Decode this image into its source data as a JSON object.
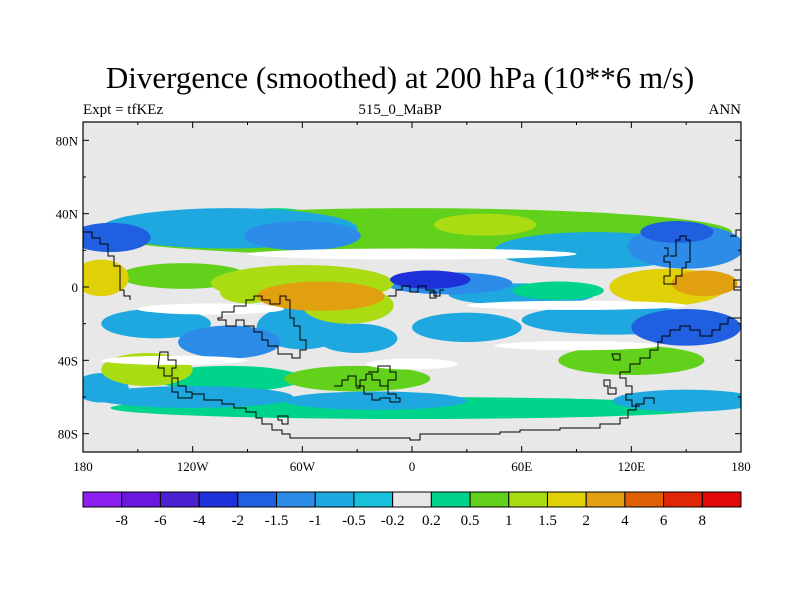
{
  "title": "Divergence (smoothed) at 200 hPa (10**6 m/s)",
  "left_label": "Expt = tfKEz",
  "center_label": "515_0_MaBP",
  "right_label": "ANN",
  "axes": {
    "lon_ticks": [
      {
        "value": -180,
        "label": "180"
      },
      {
        "value": -120,
        "label": "120W"
      },
      {
        "value": -60,
        "label": "60W"
      },
      {
        "value": 0,
        "label": "0"
      },
      {
        "value": 60,
        "label": "60E"
      },
      {
        "value": 120,
        "label": "120E"
      },
      {
        "value": 180,
        "label": "180"
      }
    ],
    "lat_ticks": [
      {
        "value": 80,
        "label": "80N"
      },
      {
        "value": 40,
        "label": "40N"
      },
      {
        "value": 0,
        "label": "0"
      },
      {
        "value": -40,
        "label": "40S"
      },
      {
        "value": -80,
        "label": "80S"
      }
    ],
    "lon_range": [
      -180,
      180
    ],
    "lat_range": [
      -90,
      90
    ]
  },
  "colorbar": {
    "colors": [
      "#8C20F0",
      "#6A18E0",
      "#4A20D0",
      "#1E30D8",
      "#1F5FE0",
      "#2C8CE8",
      "#1FA8E0",
      "#18C0DC",
      "#E8E8E8",
      "#00D48A",
      "#62D11C",
      "#AADC14",
      "#E0D008",
      "#E0A010",
      "#E06008",
      "#E02808",
      "#E00808"
    ],
    "labels": [
      "-8",
      "-6",
      "-4",
      "-2",
      "-1.5",
      "-1",
      "-0.5",
      "-0.2",
      "0.2",
      "0.5",
      "1",
      "1.5",
      "2",
      "4",
      "6",
      "8"
    ]
  },
  "field": {
    "background_color": "#E8E8E8",
    "blobs": [
      {
        "lon": 0,
        "lat": 30,
        "rx": 175,
        "ry": 13,
        "level": 0.6
      },
      {
        "lon": -100,
        "lat": 32,
        "rx": 70,
        "ry": 11,
        "level": -0.8
      },
      {
        "lon": -60,
        "lat": 28,
        "rx": 32,
        "ry": 8,
        "level": -1.4
      },
      {
        "lon": -75,
        "lat": 37,
        "rx": 25,
        "ry": 6,
        "level": 0.5
      },
      {
        "lon": 40,
        "lat": 34,
        "rx": 28,
        "ry": 6,
        "level": 1.2
      },
      {
        "lon": 100,
        "lat": 20,
        "rx": 55,
        "ry": 10,
        "level": -0.9
      },
      {
        "lon": 150,
        "lat": 22,
        "rx": 32,
        "ry": 12,
        "level": -1.3
      },
      {
        "lon": 145,
        "lat": 30,
        "rx": 20,
        "ry": 6,
        "level": -1.8
      },
      {
        "lon": -165,
        "lat": 27,
        "rx": 22,
        "ry": 8,
        "level": -1.6
      },
      {
        "lon": 140,
        "lat": 0,
        "rx": 32,
        "ry": 10,
        "level": 1.7
      },
      {
        "lon": 160,
        "lat": 2,
        "rx": 18,
        "ry": 7,
        "level": 2.5
      },
      {
        "lon": -170,
        "lat": 5,
        "rx": 15,
        "ry": 10,
        "level": 1.6
      },
      {
        "lon": -125,
        "lat": 6,
        "rx": 35,
        "ry": 7,
        "level": 0.7
      },
      {
        "lon": -60,
        "lat": 2,
        "rx": 50,
        "ry": 10,
        "level": 1.4
      },
      {
        "lon": -50,
        "lat": -5,
        "rx": 35,
        "ry": 8,
        "level": 2.2
      },
      {
        "lon": -90,
        "lat": -3,
        "rx": 15,
        "ry": 6,
        "level": 1.3
      },
      {
        "lon": 20,
        "lat": 2,
        "rx": 35,
        "ry": 6,
        "level": -1.0
      },
      {
        "lon": 10,
        "lat": 4,
        "rx": 22,
        "ry": 5,
        "level": -2.2
      },
      {
        "lon": 60,
        "lat": -4,
        "rx": 40,
        "ry": 6,
        "level": -0.5
      },
      {
        "lon": 80,
        "lat": -2,
        "rx": 25,
        "ry": 5,
        "level": 0.5
      },
      {
        "lon": -35,
        "lat": -10,
        "rx": 25,
        "ry": 10,
        "level": 1.1
      },
      {
        "lon": -140,
        "lat": -20,
        "rx": 30,
        "ry": 8,
        "level": -0.9
      },
      {
        "lon": -60,
        "lat": -22,
        "rx": 25,
        "ry": 12,
        "level": -0.6
      },
      {
        "lon": -100,
        "lat": -30,
        "rx": 28,
        "ry": 9,
        "level": -1.1
      },
      {
        "lon": -30,
        "lat": -28,
        "rx": 22,
        "ry": 8,
        "level": -0.8
      },
      {
        "lon": 30,
        "lat": -22,
        "rx": 30,
        "ry": 8,
        "level": -0.6
      },
      {
        "lon": 110,
        "lat": -18,
        "rx": 50,
        "ry": 8,
        "level": -0.9
      },
      {
        "lon": 150,
        "lat": -22,
        "rx": 30,
        "ry": 10,
        "level": -1.8
      },
      {
        "lon": -145,
        "lat": -45,
        "rx": 25,
        "ry": 9,
        "level": 1.2
      },
      {
        "lon": -100,
        "lat": -50,
        "rx": 40,
        "ry": 7,
        "level": 0.5
      },
      {
        "lon": -30,
        "lat": -50,
        "rx": 40,
        "ry": 7,
        "level": 0.6
      },
      {
        "lon": 120,
        "lat": -40,
        "rx": 40,
        "ry": 8,
        "level": 0.7
      },
      {
        "lon": -170,
        "lat": -55,
        "rx": 15,
        "ry": 8,
        "level": -0.8
      },
      {
        "lon": -120,
        "lat": -60,
        "rx": 55,
        "ry": 6,
        "level": -0.6
      },
      {
        "lon": -20,
        "lat": -62,
        "rx": 50,
        "ry": 5,
        "level": -0.5
      },
      {
        "lon": 150,
        "lat": -62,
        "rx": 40,
        "ry": 6,
        "level": -0.7
      },
      {
        "lon": 0,
        "lat": -66,
        "rx": 165,
        "ry": 6,
        "level": 0.4
      }
    ],
    "white_bands": [
      {
        "lon": 0,
        "lat": 18,
        "rx": 90,
        "ry": 3
      },
      {
        "lon": -110,
        "lat": -12,
        "rx": 40,
        "ry": 3
      },
      {
        "lon": 90,
        "lat": -10,
        "rx": 60,
        "ry": 2.5
      },
      {
        "lon": -130,
        "lat": -40,
        "rx": 40,
        "ry": 2.5
      },
      {
        "lon": 90,
        "lat": -32,
        "rx": 45,
        "ry": 2.5
      },
      {
        "lon": 0,
        "lat": -42,
        "rx": 25,
        "ry": 3
      }
    ]
  },
  "coastline_color": "#000000"
}
